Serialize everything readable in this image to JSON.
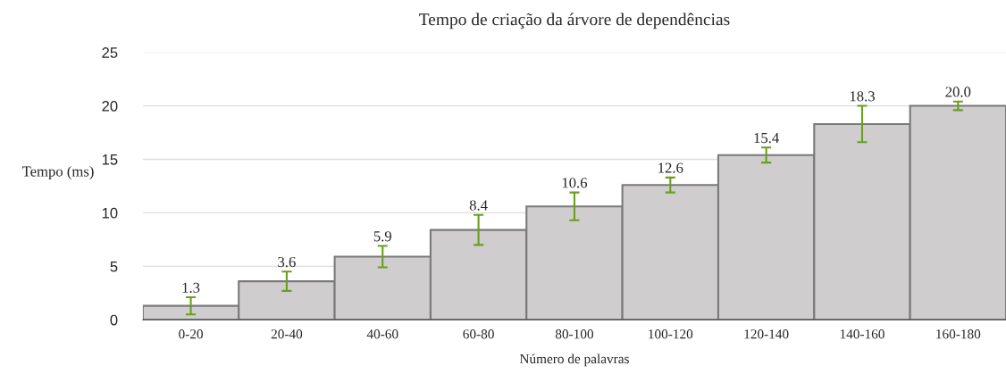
{
  "chart_data": {
    "type": "bar",
    "title": "Tempo de criação da árvore de dependências",
    "xlabel": "Número de palavras",
    "ylabel": "Tempo (ms)",
    "categories": [
      "0-20",
      "20-40",
      "40-60",
      "60-80",
      "80-100",
      "100-120",
      "120-140",
      "140-160",
      "160-180"
    ],
    "values": [
      1.3,
      3.6,
      5.9,
      8.4,
      10.6,
      12.6,
      15.4,
      18.3,
      20.0
    ],
    "errors": [
      0.8,
      0.9,
      1.0,
      1.4,
      1.3,
      0.7,
      0.7,
      1.7,
      0.4
    ],
    "value_labels": [
      "1.3",
      "3.6",
      "5.9",
      "8.4",
      "10.6",
      "12.6",
      "15.4",
      "18.3",
      "20.0"
    ],
    "color": "#cfcdce",
    "ylim": [
      0,
      25
    ],
    "yticks": [
      0,
      5,
      10,
      15,
      20,
      25
    ],
    "grid": "y",
    "legend": false
  }
}
